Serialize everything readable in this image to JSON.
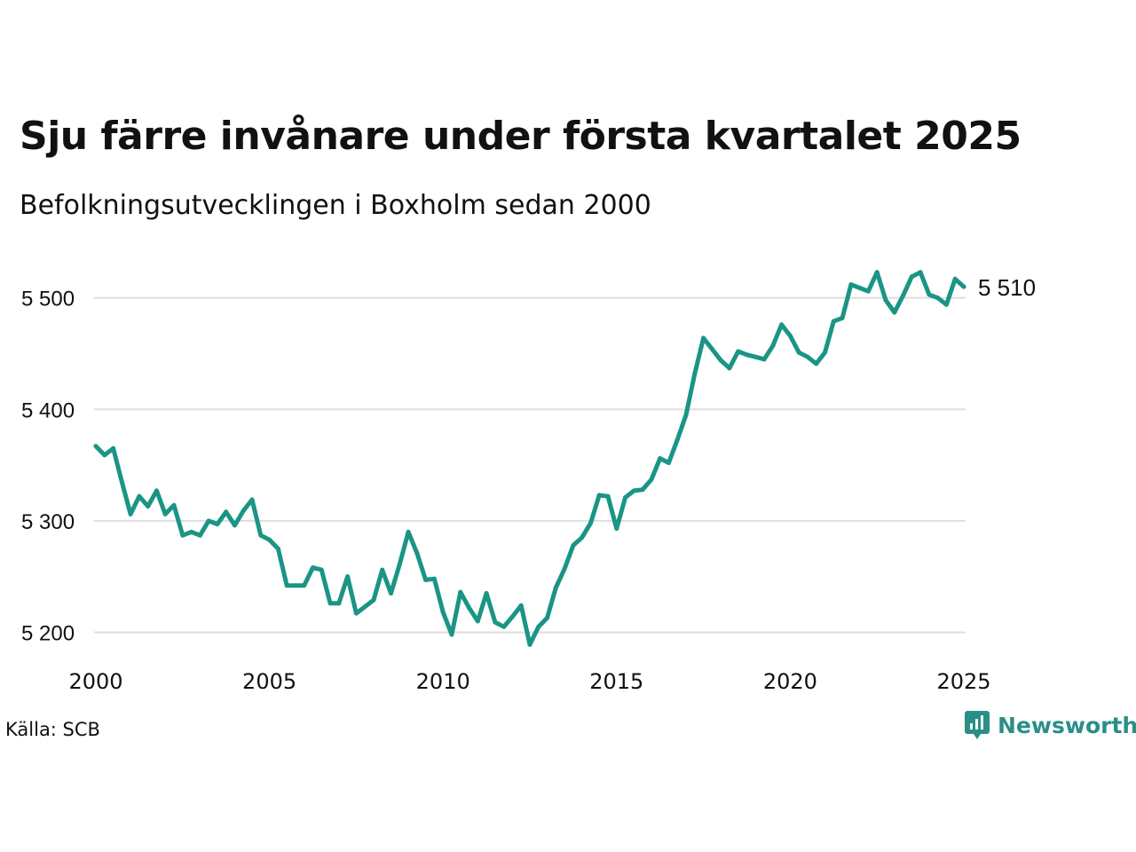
{
  "header": {
    "title": "Sju färre invånare under första kvartalet 2025",
    "subtitle": "Befolkningsutvecklingen i Boxholm sedan 2000"
  },
  "footer": {
    "source": "Källa: SCB",
    "brand": "Newsworthy",
    "brand_icon": "chart-bubble-icon"
  },
  "colors": {
    "line": "#1a9585",
    "grid": "#dddddd",
    "brand": "#2a8f86"
  },
  "chart_data": {
    "type": "line",
    "x_label": "",
    "y_label": "",
    "xlim": [
      2000,
      2025
    ],
    "ylim": [
      5190,
      5530
    ],
    "x_ticks": [
      2000,
      2005,
      2010,
      2015,
      2020,
      2025
    ],
    "x_tick_labels": [
      "2000",
      "2005",
      "2010",
      "2015",
      "2020",
      "2025"
    ],
    "y_ticks": [
      5200,
      5300,
      5400,
      5500
    ],
    "y_tick_labels": [
      "5 200",
      "5 300",
      "5 400",
      "5 500"
    ],
    "grid": "horizontal",
    "end_label": "5 510",
    "series": [
      {
        "start_year": 2000,
        "frequency": "quarterly",
        "values": [
          5367,
          5359,
          5365,
          5335,
          5306,
          5322,
          5313,
          5327,
          5306,
          5314,
          5287,
          5290,
          5287,
          5300,
          5297,
          5308,
          5296,
          5309,
          5319,
          5287,
          5283,
          5275,
          5242,
          5242,
          5242,
          5258,
          5256,
          5226,
          5226,
          5250,
          5217,
          5223,
          5229,
          5256,
          5235,
          5261,
          5290,
          5271,
          5247,
          5248,
          5218,
          5198,
          5236,
          5222,
          5210,
          5235,
          5209,
          5205,
          5214,
          5224,
          5189,
          5205,
          5213,
          5240,
          5257,
          5278,
          5285,
          5298,
          5323,
          5322,
          5293,
          5321,
          5327,
          5328,
          5337,
          5356,
          5352,
          5373,
          5395,
          5432,
          5464,
          5454,
          5444,
          5437,
          5452,
          5449,
          5447,
          5445,
          5457,
          5476,
          5466,
          5451,
          5447,
          5441,
          5451,
          5479,
          5482,
          5512,
          5509,
          5506,
          5523,
          5498,
          5487,
          5502,
          5519,
          5523,
          5503,
          5500,
          5494,
          5517,
          5510
        ]
      }
    ]
  }
}
